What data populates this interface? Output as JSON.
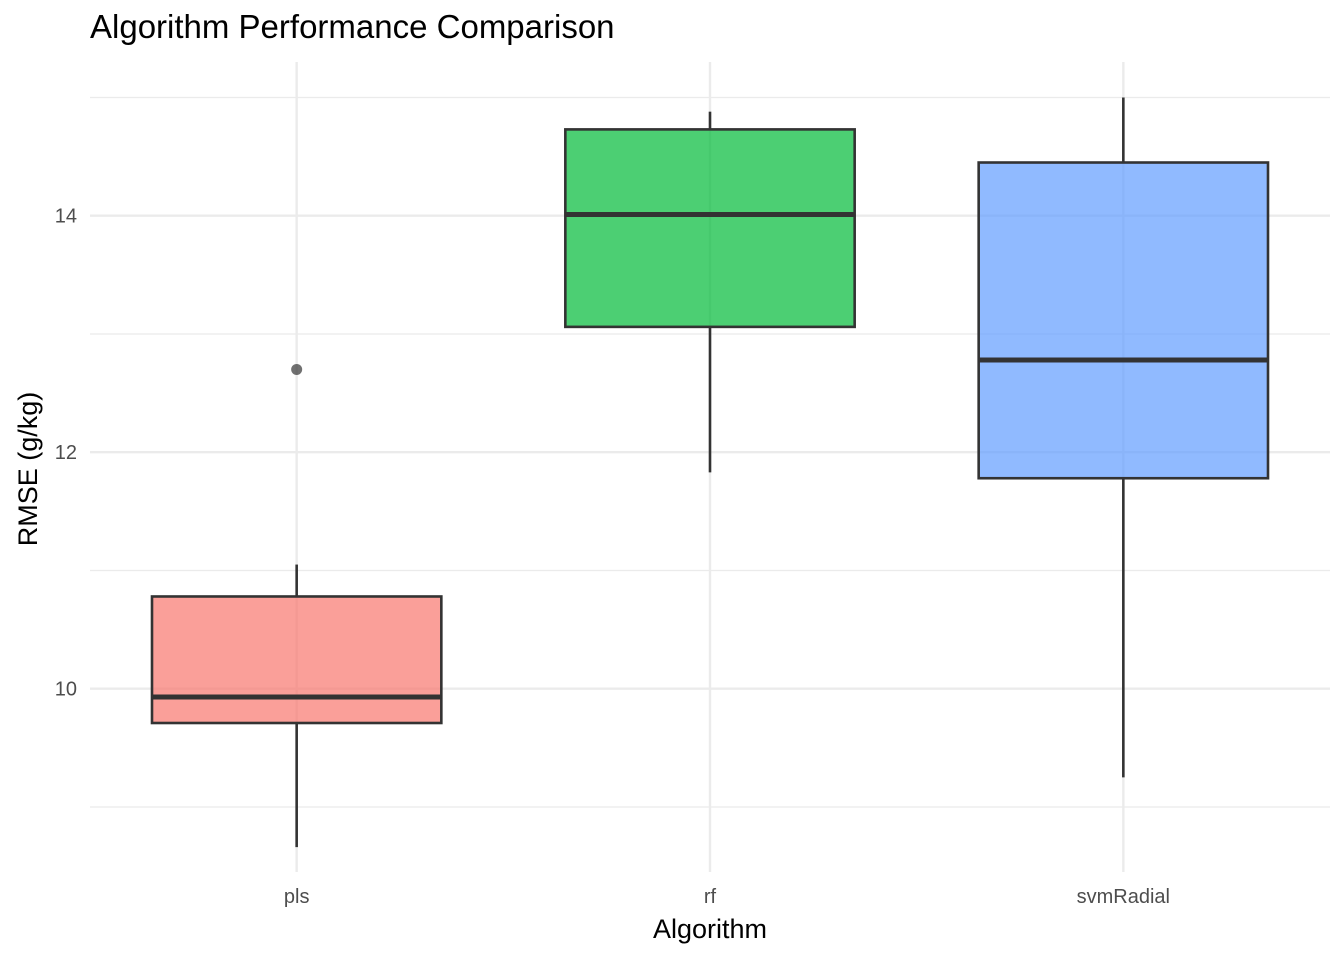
{
  "chart_data": {
    "type": "boxplot",
    "title": "Algorithm Performance Comparison",
    "xlabel": "Algorithm",
    "ylabel": "RMSE (g/kg)",
    "ylim": [
      8.45,
      15.3
    ],
    "y_ticks": [
      10,
      12,
      14
    ],
    "y_minor_ticks": [
      9,
      11,
      13,
      15
    ],
    "grid": true,
    "legend": "none",
    "categories": [
      "pls",
      "rf",
      "svmRadial"
    ],
    "boxes": [
      {
        "category": "pls",
        "whisker_low": 8.66,
        "q1": 9.71,
        "median": 9.93,
        "q3": 10.78,
        "whisker_high": 11.05,
        "outliers": [
          12.7
        ],
        "color": "#F8766D"
      },
      {
        "category": "rf",
        "whisker_low": 11.83,
        "q1": 13.06,
        "median": 14.01,
        "q3": 14.73,
        "whisker_high": 14.88,
        "outliers": [],
        "color": "#00BA38"
      },
      {
        "category": "svmRadial",
        "whisker_low": 9.25,
        "q1": 11.78,
        "median": 12.78,
        "q3": 14.45,
        "whisker_high": 15.0,
        "outliers": [],
        "color": "#619CFF"
      }
    ]
  }
}
